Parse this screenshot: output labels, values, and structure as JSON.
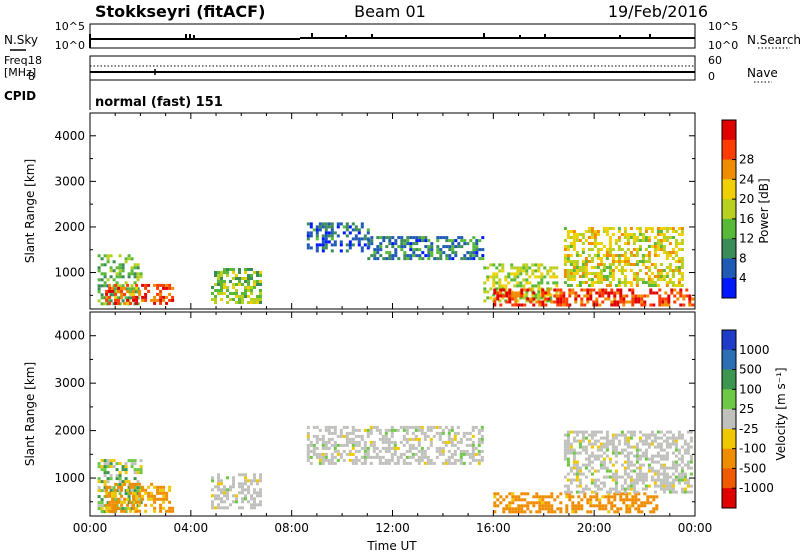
{
  "header": {
    "station": "Stokkseyri (fitACF)",
    "beam": "Beam 01",
    "date": "19/Feb/2016"
  },
  "noise_panel": {
    "left_label": "N.Sky",
    "right_label": "N.Search",
    "left_ticks": [
      "10^5",
      "10^0"
    ],
    "right_ticks": [
      "10^5",
      "10^0"
    ]
  },
  "freq_panel": {
    "left_label_1": "Freq.",
    "left_label_2": "[MHz]",
    "right_label": "Nave",
    "left_ticks": [
      "18",
      "8"
    ],
    "right_ticks": [
      "60",
      "0"
    ]
  },
  "cpid_panel": {
    "label": "CPID",
    "mode_text": "normal (fast) 151"
  },
  "colors": {
    "power_scale": [
      "#0018ff",
      "#1f5ab4",
      "#3c8c5a",
      "#58b838",
      "#b8d020",
      "#f0d000",
      "#f08c00",
      "#ff3c00",
      "#e00000"
    ],
    "velocity_scale": [
      "#1f3cc8",
      "#2c6eb4",
      "#3c9650",
      "#6ec846",
      "#c0c0bc",
      "#f0c800",
      "#f08c00",
      "#f05a00",
      "#e00000"
    ]
  },
  "chart_data": [
    {
      "type": "heatmap",
      "title": "",
      "xlabel": "",
      "ylabel": "Slant Range [km]",
      "xlim": [
        0,
        24
      ],
      "ylim": [
        200,
        4500
      ],
      "x_ticks": [
        "00:00",
        "04:00",
        "08:00",
        "12:00",
        "16:00",
        "20:00",
        "00:00"
      ],
      "y_ticks": [
        "1000",
        "2000",
        "3000",
        "4000"
      ],
      "colorbar_label": "Power [dB]",
      "colorbar_ticks": [
        "4",
        "8",
        "12",
        "16",
        "20",
        "24",
        "28"
      ],
      "regions": [
        {
          "t0": 0.3,
          "t1": 2.0,
          "r0": 300,
          "r1": 1400,
          "value": 12
        },
        {
          "t0": 0.6,
          "t1": 3.3,
          "r0": 300,
          "r1": 750,
          "value": 26
        },
        {
          "t0": 4.8,
          "t1": 6.8,
          "r0": 350,
          "r1": 1100,
          "value": 14
        },
        {
          "t0": 8.6,
          "t1": 11.0,
          "r0": 1500,
          "r1": 2100,
          "value": 6
        },
        {
          "t0": 11.0,
          "t1": 15.6,
          "r0": 1300,
          "r1": 1800,
          "value": 8
        },
        {
          "t0": 15.6,
          "t1": 18.5,
          "r0": 350,
          "r1": 1200,
          "value": 16
        },
        {
          "t0": 16.0,
          "t1": 23.9,
          "r0": 300,
          "r1": 650,
          "value": 27
        },
        {
          "t0": 18.8,
          "t1": 23.5,
          "r0": 700,
          "r1": 2000,
          "value": 18
        }
      ]
    },
    {
      "type": "heatmap",
      "title": "",
      "xlabel": "Time UT",
      "ylabel": "Slant Range [km]",
      "xlim": [
        0,
        24
      ],
      "ylim": [
        200,
        4500
      ],
      "x_ticks": [
        "00:00",
        "04:00",
        "08:00",
        "12:00",
        "16:00",
        "20:00",
        "00:00"
      ],
      "y_ticks": [
        "1000",
        "2000",
        "3000",
        "4000"
      ],
      "colorbar_label": "Velocity [m s⁻¹]",
      "colorbar_ticks": [
        "1000",
        "500",
        "100",
        "25",
        "-25",
        "-100",
        "-500",
        "-1000"
      ],
      "regions": [
        {
          "t0": 0.3,
          "t1": 2.0,
          "r0": 300,
          "r1": 1400,
          "value": 60
        },
        {
          "t0": 0.6,
          "t1": 3.3,
          "r0": 300,
          "r1": 900,
          "value": -150
        },
        {
          "t0": 4.8,
          "t1": 6.8,
          "r0": 350,
          "r1": 1100,
          "value": 0
        },
        {
          "t0": 8.6,
          "t1": 15.6,
          "r0": 1300,
          "r1": 2100,
          "value": 0
        },
        {
          "t0": 16.0,
          "t1": 22.5,
          "r0": 300,
          "r1": 700,
          "value": -200
        },
        {
          "t0": 18.8,
          "t1": 23.9,
          "r0": 700,
          "r1": 2000,
          "value": 0
        }
      ]
    }
  ]
}
